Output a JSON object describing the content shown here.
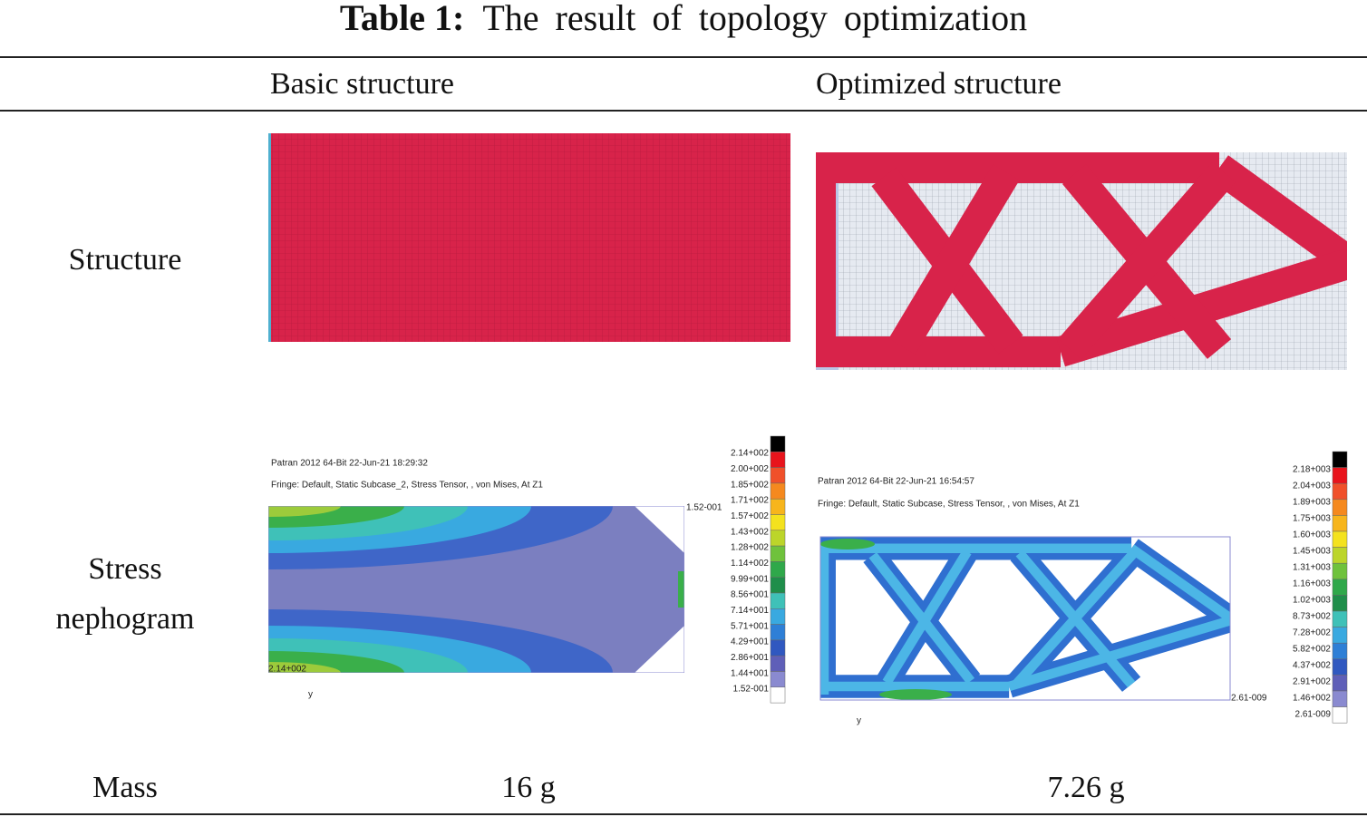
{
  "title": {
    "label": "Table 1:",
    "text": "The result of topology optimization"
  },
  "table": {
    "columns": [
      "Basic structure",
      "Optimized structure"
    ],
    "rows": [
      {
        "label": "Structure"
      },
      {
        "label": "Stress nephogram"
      },
      {
        "label": "Mass",
        "values": [
          "16 g",
          "7.26 g"
        ]
      }
    ]
  },
  "nephograms": [
    {
      "header": "Patran 2012 64-Bit 22-Jun-21 18:29:32",
      "fringe": "Fringe: Default, Static Subcase_2, Stress Tensor, , von Mises, At Z1",
      "max_note": "2.14+002",
      "min_note": "1.52-001",
      "axis": "y",
      "legend": [
        "2.14+002",
        "2.00+002",
        "1.85+002",
        "1.71+002",
        "1.57+002",
        "1.43+002",
        "1.28+002",
        "1.14+002",
        "9.99+001",
        "8.56+001",
        "7.14+001",
        "5.71+001",
        "4.29+001",
        "2.86+001",
        "1.44+001",
        "1.52-001"
      ]
    },
    {
      "header": "Patran 2012 64-Bit 22-Jun-21 16:54:57",
      "fringe": "Fringe: Default, Static Subcase, Stress Tensor, , von Mises, At Z1",
      "min_note": "2.61-009",
      "axis": "y",
      "legend": [
        "2.18+003",
        "2.04+003",
        "1.89+003",
        "1.75+003",
        "1.60+003",
        "1.45+003",
        "1.31+003",
        "1.16+003",
        "1.02+003",
        "8.73+002",
        "7.28+002",
        "5.82+002",
        "4.37+002",
        "2.91+002",
        "1.46+002",
        "2.61-009"
      ]
    }
  ]
}
